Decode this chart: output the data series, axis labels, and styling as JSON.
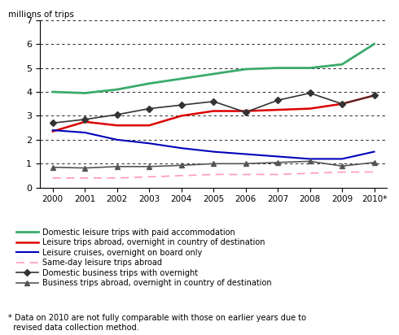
{
  "years": [
    2000,
    2001,
    2002,
    2003,
    2004,
    2005,
    2006,
    2007,
    2008,
    2009,
    2010
  ],
  "year_labels": [
    "2000",
    "2001",
    "2002",
    "2003",
    "2004",
    "2005",
    "2006",
    "2007",
    "2008",
    "2009",
    "2010*"
  ],
  "domestic_leisure_paid": [
    4.0,
    3.95,
    4.1,
    4.35,
    4.55,
    4.75,
    4.95,
    5.0,
    5.0,
    5.15,
    6.0
  ],
  "leisure_abroad_overnight": [
    2.35,
    2.75,
    2.6,
    2.6,
    3.0,
    3.2,
    3.2,
    3.25,
    3.3,
    3.5,
    3.85
  ],
  "leisure_cruises": [
    2.4,
    2.3,
    2.0,
    1.85,
    1.65,
    1.5,
    1.4,
    1.3,
    1.2,
    1.2,
    1.5
  ],
  "sameday_leisure": [
    0.4,
    0.4,
    0.4,
    0.45,
    0.5,
    0.55,
    0.55,
    0.55,
    0.6,
    0.65,
    0.65
  ],
  "domestic_business_overnight": [
    2.7,
    2.85,
    3.05,
    3.3,
    3.45,
    3.6,
    3.15,
    3.65,
    3.95,
    3.5,
    3.85
  ],
  "business_abroad_overnight": [
    0.85,
    0.82,
    0.88,
    0.88,
    0.93,
    1.0,
    1.0,
    1.05,
    1.1,
    0.9,
    1.05
  ],
  "ylabel": "millions of trips",
  "ylim": [
    0,
    7
  ],
  "yticks": [
    0,
    1,
    2,
    3,
    4,
    5,
    6,
    7
  ],
  "colors": {
    "domestic_leisure_paid": "#3aaa6a",
    "leisure_abroad_overnight": "#dd0000",
    "leisure_cruises": "#0000bb",
    "sameday_leisure": "#ff99bb",
    "domestic_business_overnight": "#333333",
    "business_abroad_overnight": "#555555"
  },
  "legend_labels": [
    "Domestic leisure trips with paid accommodation",
    "Leisure trips abroad, overnight in country of destination",
    "Leisure cruises, overnight on board only",
    "Same-day leisure trips abroad",
    "Domestic business trips with overnight",
    "Business trips abroad, overnight in country of destination"
  ],
  "footnote": "* Data on 2010 are not fully comparable with those on earlier years due to\n  revised data collection method."
}
